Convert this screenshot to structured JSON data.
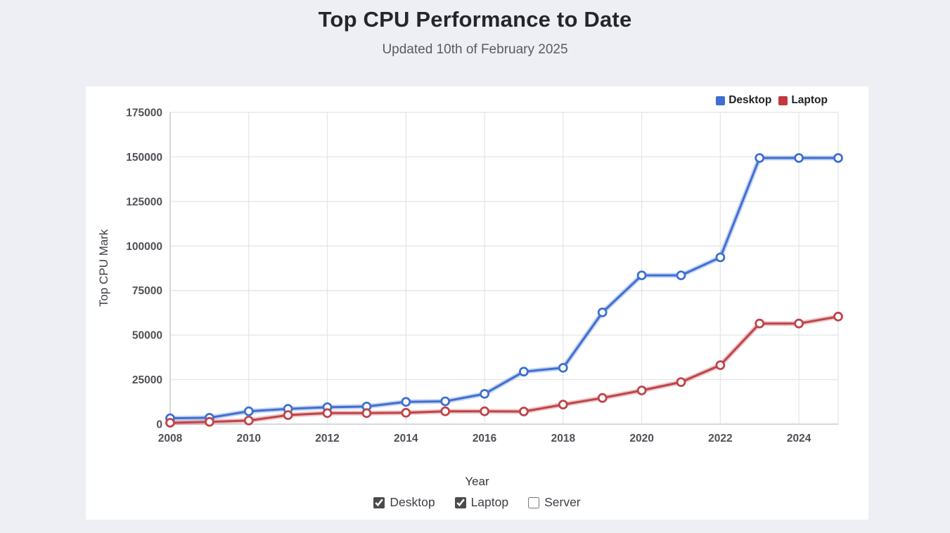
{
  "page": {
    "title": "Top CPU Performance to Date",
    "subtitle": "Updated 10th of February 2025"
  },
  "legend": {
    "position": "top-right",
    "items": [
      {
        "label": "Desktop",
        "color": "#3e6fd1"
      },
      {
        "label": "Laptop",
        "color": "#c0393f"
      }
    ]
  },
  "controls": {
    "series_toggles": [
      {
        "label": "Desktop",
        "checked": true
      },
      {
        "label": "Laptop",
        "checked": true
      },
      {
        "label": "Server",
        "checked": false
      }
    ]
  },
  "chart_data": {
    "type": "line",
    "title": "Top CPU Performance to Date",
    "xlabel": "Year",
    "ylabel": "Top CPU Mark",
    "x": [
      2008,
      2009,
      2010,
      2011,
      2012,
      2013,
      2014,
      2015,
      2016,
      2017,
      2018,
      2019,
      2020,
      2021,
      2022,
      2023,
      2024,
      2025
    ],
    "xlim": [
      2008,
      2025
    ],
    "ylim": [
      0,
      175000
    ],
    "x_ticks": [
      2008,
      2010,
      2012,
      2014,
      2016,
      2018,
      2020,
      2022,
      2024
    ],
    "y_ticks": [
      0,
      25000,
      50000,
      75000,
      100000,
      125000,
      150000,
      175000
    ],
    "grid": true,
    "legend_position": "top-right",
    "series": [
      {
        "name": "Desktop",
        "color": "#3e6fd1",
        "values": [
          3300,
          3600,
          7200,
          8600,
          9500,
          9900,
          12500,
          12800,
          17000,
          29500,
          31600,
          62700,
          83500,
          83500,
          93600,
          149400,
          149400,
          149400
        ]
      },
      {
        "name": "Laptop",
        "color": "#bf4348",
        "values": [
          800,
          1300,
          2000,
          5100,
          6200,
          6200,
          6400,
          7200,
          7200,
          7100,
          11000,
          14700,
          18900,
          23600,
          33100,
          56500,
          56500,
          60400
        ]
      }
    ]
  },
  "style": {
    "grid_color": "#e3e4e6",
    "axis_color": "#c9cbce",
    "tick_text_color": "#4f5156",
    "marker_fill": "#ffffff"
  }
}
